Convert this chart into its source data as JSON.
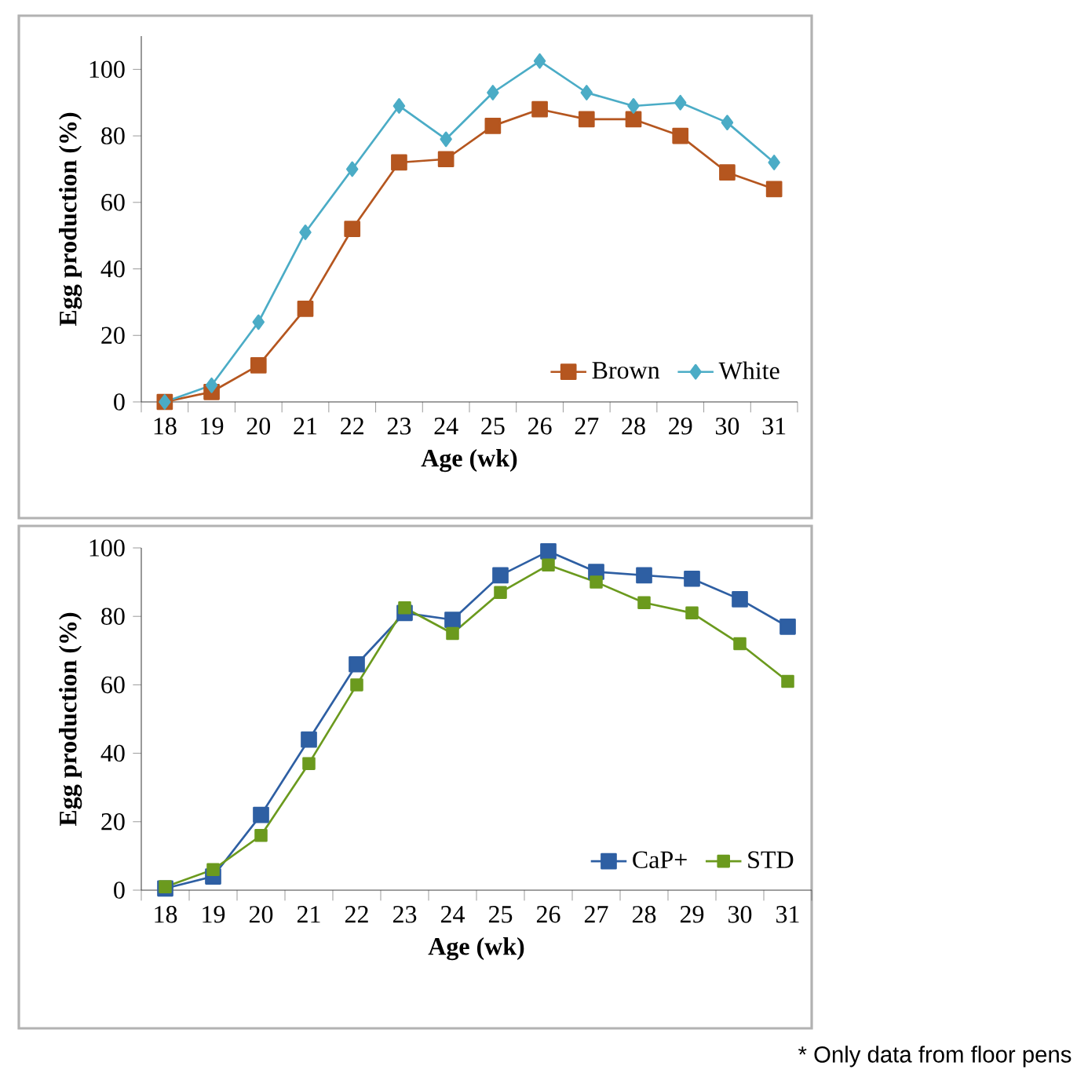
{
  "chart_data": [
    {
      "type": "line",
      "xlabel": "Age (wk)",
      "ylabel": "Egg production (%)",
      "categories": [
        "18",
        "19",
        "20",
        "21",
        "22",
        "23",
        "24",
        "25",
        "26",
        "27",
        "28",
        "29",
        "30",
        "31"
      ],
      "ylim": [
        0,
        110
      ],
      "yticks": [
        0,
        20,
        40,
        60,
        80,
        100
      ],
      "legend": "bottom right",
      "series": [
        {
          "name": "Brown",
          "color": "#b5561f",
          "marker": "square",
          "values": [
            0,
            3,
            11,
            28,
            52,
            72,
            73,
            83,
            88,
            85,
            85,
            80,
            69,
            64
          ]
        },
        {
          "name": "White",
          "color": "#4bacc6",
          "marker": "diamond",
          "values": [
            0,
            5,
            24,
            51,
            70,
            89,
            79,
            93,
            102.5,
            93,
            89,
            90,
            84,
            72
          ]
        }
      ]
    },
    {
      "type": "line",
      "xlabel": "Age (wk)",
      "ylabel": "Egg production (%)",
      "categories": [
        "18",
        "19",
        "20",
        "21",
        "22",
        "23",
        "24",
        "25",
        "26",
        "27",
        "28",
        "29",
        "30",
        "31"
      ],
      "ylim": [
        0,
        100
      ],
      "yticks": [
        0,
        20,
        40,
        60,
        80,
        100
      ],
      "legend": "bottom right",
      "annotations": [
        "* Only data from floor pens"
      ],
      "series": [
        {
          "name": "CaP+",
          "color": "#2e5fa3",
          "marker": "square",
          "values": [
            0.5,
            4,
            22,
            44,
            66,
            81,
            79,
            92,
            99,
            93,
            92,
            91,
            85,
            77
          ]
        },
        {
          "name": "STD",
          "color": "#6b9a1e",
          "marker": "square",
          "values": [
            1,
            6,
            16,
            37,
            60,
            82.5,
            75,
            87,
            95,
            90,
            84,
            81,
            72,
            61
          ]
        }
      ]
    }
  ]
}
